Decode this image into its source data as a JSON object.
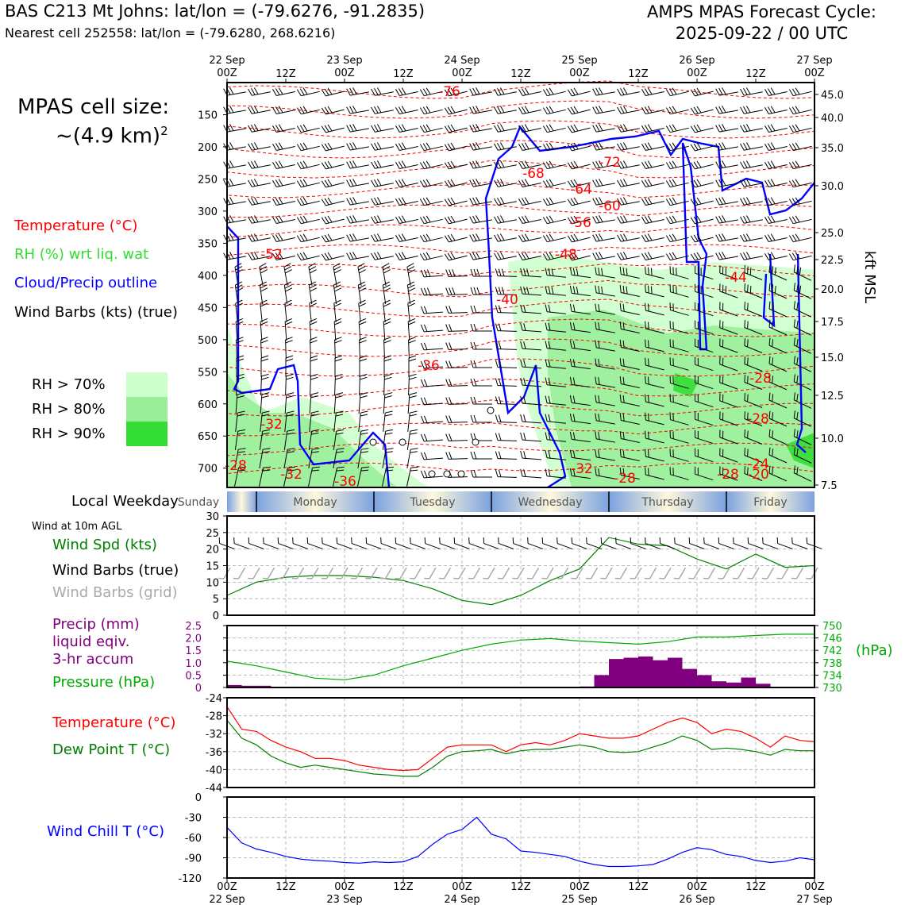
{
  "header": {
    "station": "BAS C213 Mt Johns: lat/lon = (-79.6276, -91.2835)",
    "nearest": "Nearest cell 252558: lat/lon = (-79.6280, 268.6216)",
    "forecast_line1": "AMPS MPAS Forecast Cycle:",
    "forecast_line2": "2025-09-22 / 00 UTC"
  },
  "sidebar": {
    "cell_size_line1": "MPAS cell size:",
    "cell_size_line2": "~(4.9 km)",
    "cell_size_sup": "2",
    "legend_temp": "Temperature (°C)",
    "legend_rh": "RH (%) wrt liq. wat",
    "legend_cloud": "Cloud/Precip outline",
    "legend_wind": "Wind Barbs (kts) (true)",
    "rh70": "RH > 70%",
    "rh80": "RH > 80%",
    "rh90": "RH > 90%",
    "weekday_label": "Local Weekday",
    "wind10m": "Wind at 10m AGL",
    "wind_spd": "Wind Spd (kts)",
    "wind_barbs_true": "Wind Barbs (true)",
    "wind_barbs_grid": "Wind Barbs (grid)",
    "precip1": "Precip (mm)",
    "precip2": "liquid eqiv.",
    "precip3": "3-hr accum",
    "pressure": "Pressure (hPa)",
    "hpa": "(hPa)",
    "temp": "Temperature (°C)",
    "dew": "Dew Point T (°C)",
    "chill": "Wind Chill T (°C)",
    "kft": "kft MSL"
  },
  "colors": {
    "temp": "#ff0000",
    "rh_text": "#33dd33",
    "cloud": "#0000ff",
    "rh70": "#ccffcc",
    "rh80": "#99ee99",
    "rh90": "#33dd33",
    "precip": "#800080",
    "pressure": "#00aa00",
    "dew": "#008000",
    "wind_grid": "#aaaaaa"
  },
  "chart_data": [
    {
      "type": "area",
      "name": "cross-section",
      "x_ticks_top": [
        "22 Sep\n00Z",
        "12Z",
        "23 Sep\n00Z",
        "12Z",
        "24 Sep\n00Z",
        "12Z",
        "25 Sep\n00Z",
        "12Z",
        "26 Sep\n00Z",
        "12Z",
        "27 Sep\n00Z"
      ],
      "y_ticks_hpa": [
        150,
        200,
        250,
        300,
        350,
        400,
        450,
        500,
        550,
        600,
        650,
        700
      ],
      "y_ticks_kft": [
        45.0,
        40.0,
        35.0,
        30.0,
        25.0,
        22.5,
        20.0,
        17.5,
        15.0,
        12.5,
        10.0,
        7.5
      ],
      "ylim_hpa": [
        730,
        100
      ],
      "temp_contour_labels": [
        "-76",
        "-72",
        "-68",
        "-64",
        "-60",
        "-56",
        "-52",
        "-48",
        "-44",
        "-40",
        "-36",
        "-32",
        "-32",
        "-36",
        "-28",
        "-28",
        "-24",
        "-28",
        "-20",
        "-28",
        "-32",
        "-28"
      ]
    },
    {
      "type": "line",
      "name": "wind-speed",
      "yticks": [
        0,
        5,
        10,
        15,
        20,
        25,
        30
      ],
      "ylim": [
        0,
        30
      ],
      "x_hours": [
        0,
        6,
        12,
        18,
        24,
        30,
        36,
        42,
        48,
        54,
        60,
        66,
        72,
        78,
        84,
        90,
        96,
        102,
        108,
        114,
        120
      ],
      "values": [
        6,
        10,
        11.5,
        12,
        12,
        11.5,
        10.5,
        8,
        4.5,
        3.2,
        6,
        10.5,
        14,
        23.5,
        21.5,
        21,
        17,
        14,
        18.5,
        14.5,
        15
      ]
    },
    {
      "type": "bar",
      "name": "precip-pressure",
      "precip_yticks": [
        0,
        0.5,
        1.0,
        1.5,
        2.0,
        2.5
      ],
      "pressure_yticks": [
        730,
        734,
        738,
        742,
        746,
        750
      ],
      "x_hours_precip": [
        0,
        3,
        6,
        9,
        12,
        15,
        18,
        21,
        24,
        27,
        30,
        33,
        36,
        39,
        42,
        45,
        48,
        51,
        54,
        57,
        60,
        63,
        66,
        69,
        72,
        75,
        78,
        81,
        84,
        87,
        90,
        93,
        96,
        99,
        102,
        105,
        108,
        111,
        114,
        117
      ],
      "precip": [
        0.1,
        0.07,
        0.07,
        0.03,
        0,
        0,
        0,
        0,
        0,
        0,
        0,
        0,
        0,
        0,
        0,
        0,
        0,
        0,
        0,
        0,
        0,
        0,
        0,
        0,
        0.04,
        0.5,
        1.15,
        1.2,
        1.25,
        1.1,
        1.2,
        0.75,
        0.5,
        0.25,
        0.2,
        0.4,
        0.15,
        0,
        0.03,
        0
      ],
      "x_hours_pressure": [
        0,
        6,
        12,
        18,
        24,
        30,
        36,
        42,
        48,
        54,
        60,
        66,
        72,
        78,
        84,
        90,
        96,
        102,
        108,
        114,
        120
      ],
      "pressure": [
        738.5,
        737,
        735,
        733,
        732.5,
        734,
        737,
        739.5,
        742,
        744,
        745.3,
        745.8,
        745,
        744.5,
        744,
        744.8,
        746.3,
        746.3,
        746.8,
        747.2,
        747.2
      ]
    },
    {
      "type": "line",
      "name": "temperature-dewpoint",
      "yticks": [
        -24,
        -28,
        -32,
        -36,
        -40,
        -44
      ],
      "ylim": [
        -44,
        -24
      ],
      "x_hours": [
        0,
        3,
        6,
        9,
        12,
        15,
        18,
        21,
        24,
        27,
        30,
        33,
        36,
        39,
        42,
        45,
        48,
        51,
        54,
        57,
        60,
        63,
        66,
        69,
        72,
        75,
        78,
        81,
        84,
        87,
        90,
        93,
        96,
        99,
        102,
        105,
        108,
        111,
        114,
        117,
        120
      ],
      "temperature": [
        -26,
        -31,
        -31.5,
        -33.5,
        -35,
        -36,
        -37.5,
        -37.5,
        -38,
        -39,
        -39.5,
        -40,
        -40.2,
        -40,
        -37.5,
        -35,
        -34.5,
        -34.5,
        -34.5,
        -36,
        -34.5,
        -34,
        -34.5,
        -33.5,
        -32,
        -32.5,
        -33,
        -33,
        -32.5,
        -31,
        -29.5,
        -28.5,
        -29.5,
        -32,
        -31,
        -31.5,
        -33,
        -35,
        -32.5,
        -33.5,
        -33.8
      ],
      "dewpoint": [
        -29,
        -33,
        -34.5,
        -37,
        -38.5,
        -39.5,
        -39,
        -39.5,
        -40,
        -40.5,
        -41,
        -41.2,
        -41.5,
        -41.5,
        -39.5,
        -37,
        -36,
        -35.8,
        -35.5,
        -36.5,
        -35.8,
        -35.5,
        -35.5,
        -35,
        -34.5,
        -35,
        -36,
        -36.2,
        -36,
        -35,
        -34,
        -32.5,
        -33.5,
        -35.5,
        -35.2,
        -35.5,
        -36,
        -36.8,
        -35.5,
        -35.8,
        -35.8
      ]
    },
    {
      "type": "line",
      "name": "wind-chill",
      "yticks": [
        0,
        -30,
        -60,
        -90,
        -120
      ],
      "ylim": [
        -120,
        0
      ],
      "x_hours": [
        0,
        3,
        6,
        9,
        12,
        15,
        18,
        21,
        24,
        27,
        30,
        33,
        36,
        39,
        42,
        45,
        48,
        51,
        54,
        57,
        60,
        63,
        66,
        69,
        72,
        75,
        78,
        81,
        84,
        87,
        90,
        93,
        96,
        99,
        102,
        105,
        108,
        111,
        114,
        117,
        120
      ],
      "values": [
        -45,
        -68,
        -77,
        -82,
        -88,
        -92,
        -94,
        -95,
        -97,
        -98,
        -96,
        -97,
        -96,
        -88,
        -70,
        -55,
        -48,
        -30,
        -55,
        -62,
        -80,
        -82,
        -85,
        -88,
        -95,
        -100,
        -103,
        -103,
        -102,
        -100,
        -92,
        -82,
        -75,
        -78,
        -85,
        -88,
        -94,
        -97,
        -95,
        -90,
        -93
      ]
    }
  ],
  "weekdays": [
    "Sunday",
    "Monday",
    "Tuesday",
    "Wednesday",
    "Thursday",
    "Friday"
  ],
  "x_ticks_bottom": [
    "00Z\n22 Sep",
    "12Z",
    "00Z\n23 Sep",
    "12Z",
    "00Z\n24 Sep",
    "12Z",
    "00Z\n25 Sep",
    "12Z",
    "00Z\n26 Sep",
    "12Z",
    "00Z\n27 Sep"
  ]
}
